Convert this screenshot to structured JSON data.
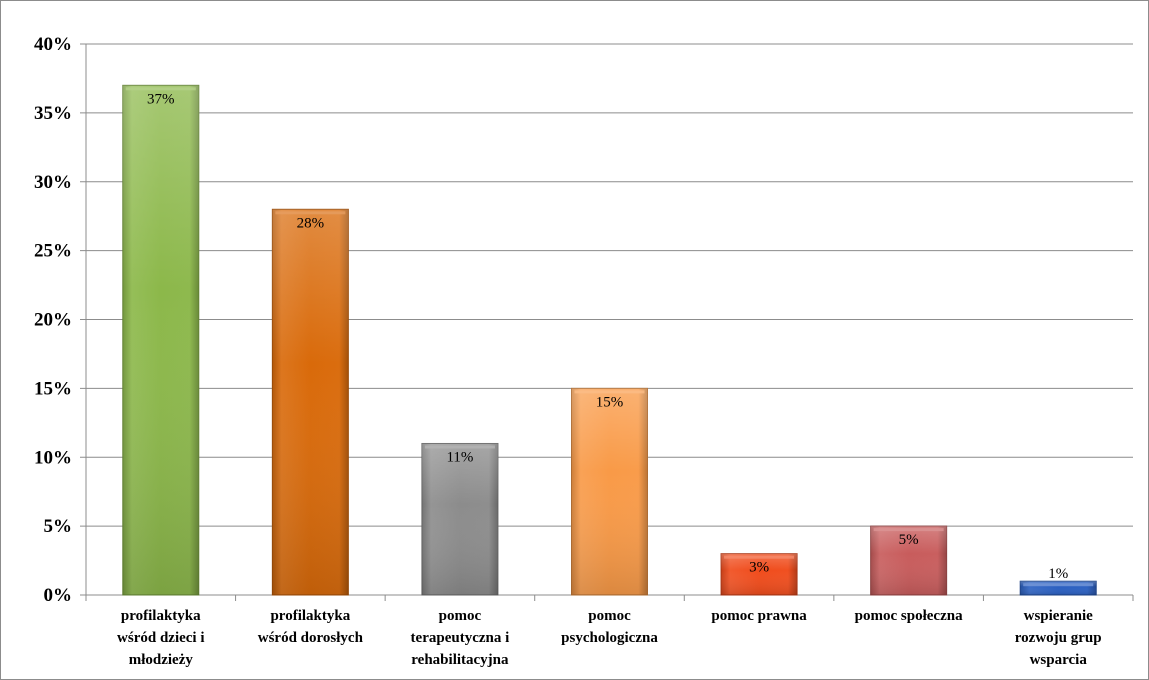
{
  "chart_data": {
    "type": "bar",
    "categories": [
      [
        "profilaktyka",
        "wśród dzieci i",
        "młodzieży"
      ],
      [
        "profilaktyka",
        "wśród dorosłych"
      ],
      [
        "pomoc",
        "terapeutyczna i",
        "rehabilitacyjna"
      ],
      [
        "pomoc",
        "psychologiczna"
      ],
      [
        "pomoc prawna"
      ],
      [
        "pomoc społeczna"
      ],
      [
        "wspieranie",
        "rozwoju grup",
        "wsparcia"
      ]
    ],
    "values": [
      37,
      28,
      11,
      15,
      3,
      5,
      1
    ],
    "data_labels": [
      "37%",
      "28%",
      "11%",
      "15%",
      "3%",
      "5%",
      "1%"
    ],
    "colors": [
      "#8cb84a",
      "#d96a0a",
      "#8c8c8c",
      "#f99a47",
      "#f04c1c",
      "#c85c5c",
      "#2a5fc1"
    ],
    "ylim": [
      0,
      40
    ],
    "yticks": [
      0,
      5,
      10,
      15,
      20,
      25,
      30,
      35,
      40
    ],
    "ytick_labels": [
      "0%",
      "5%",
      "10%",
      "15%",
      "20%",
      "25%",
      "30%",
      "35%",
      "40%"
    ],
    "grid": true,
    "title": "",
    "xlabel": "",
    "ylabel": ""
  }
}
